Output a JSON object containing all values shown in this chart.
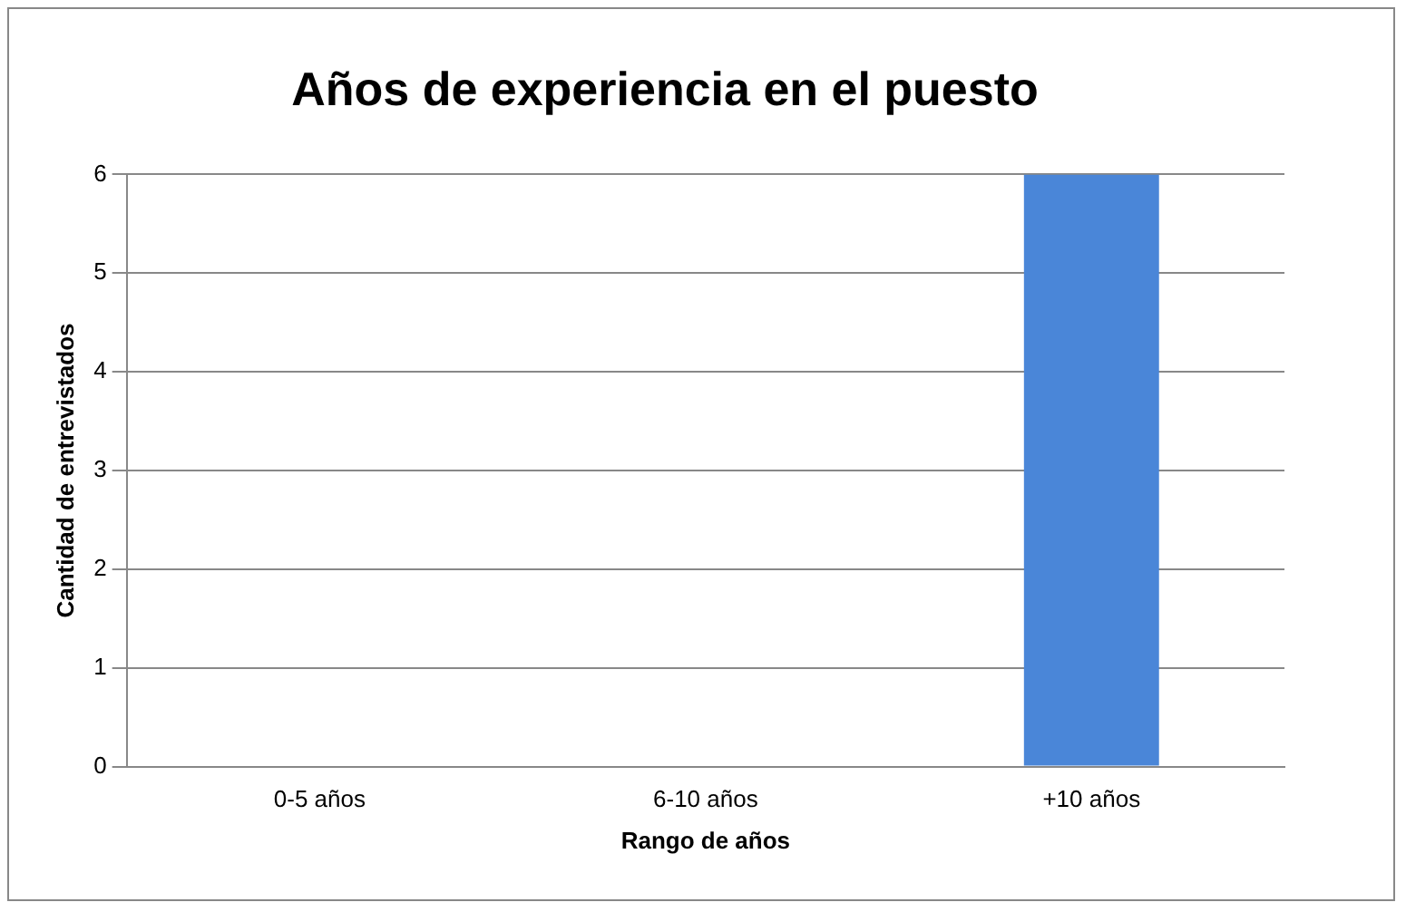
{
  "chart_data": {
    "type": "bar",
    "title": "Años de experiencia en el puesto",
    "xlabel": "Rango de años",
    "ylabel": "Cantidad de entrevistados",
    "categories": [
      "0-5 años",
      "6-10 años",
      "+10 años"
    ],
    "values": [
      0,
      0,
      6
    ],
    "color": "#4a86d8",
    "ylim": [
      0,
      6
    ],
    "yticks": [
      0,
      1,
      2,
      3,
      4,
      5,
      6
    ],
    "grid": "y",
    "legend": false
  }
}
